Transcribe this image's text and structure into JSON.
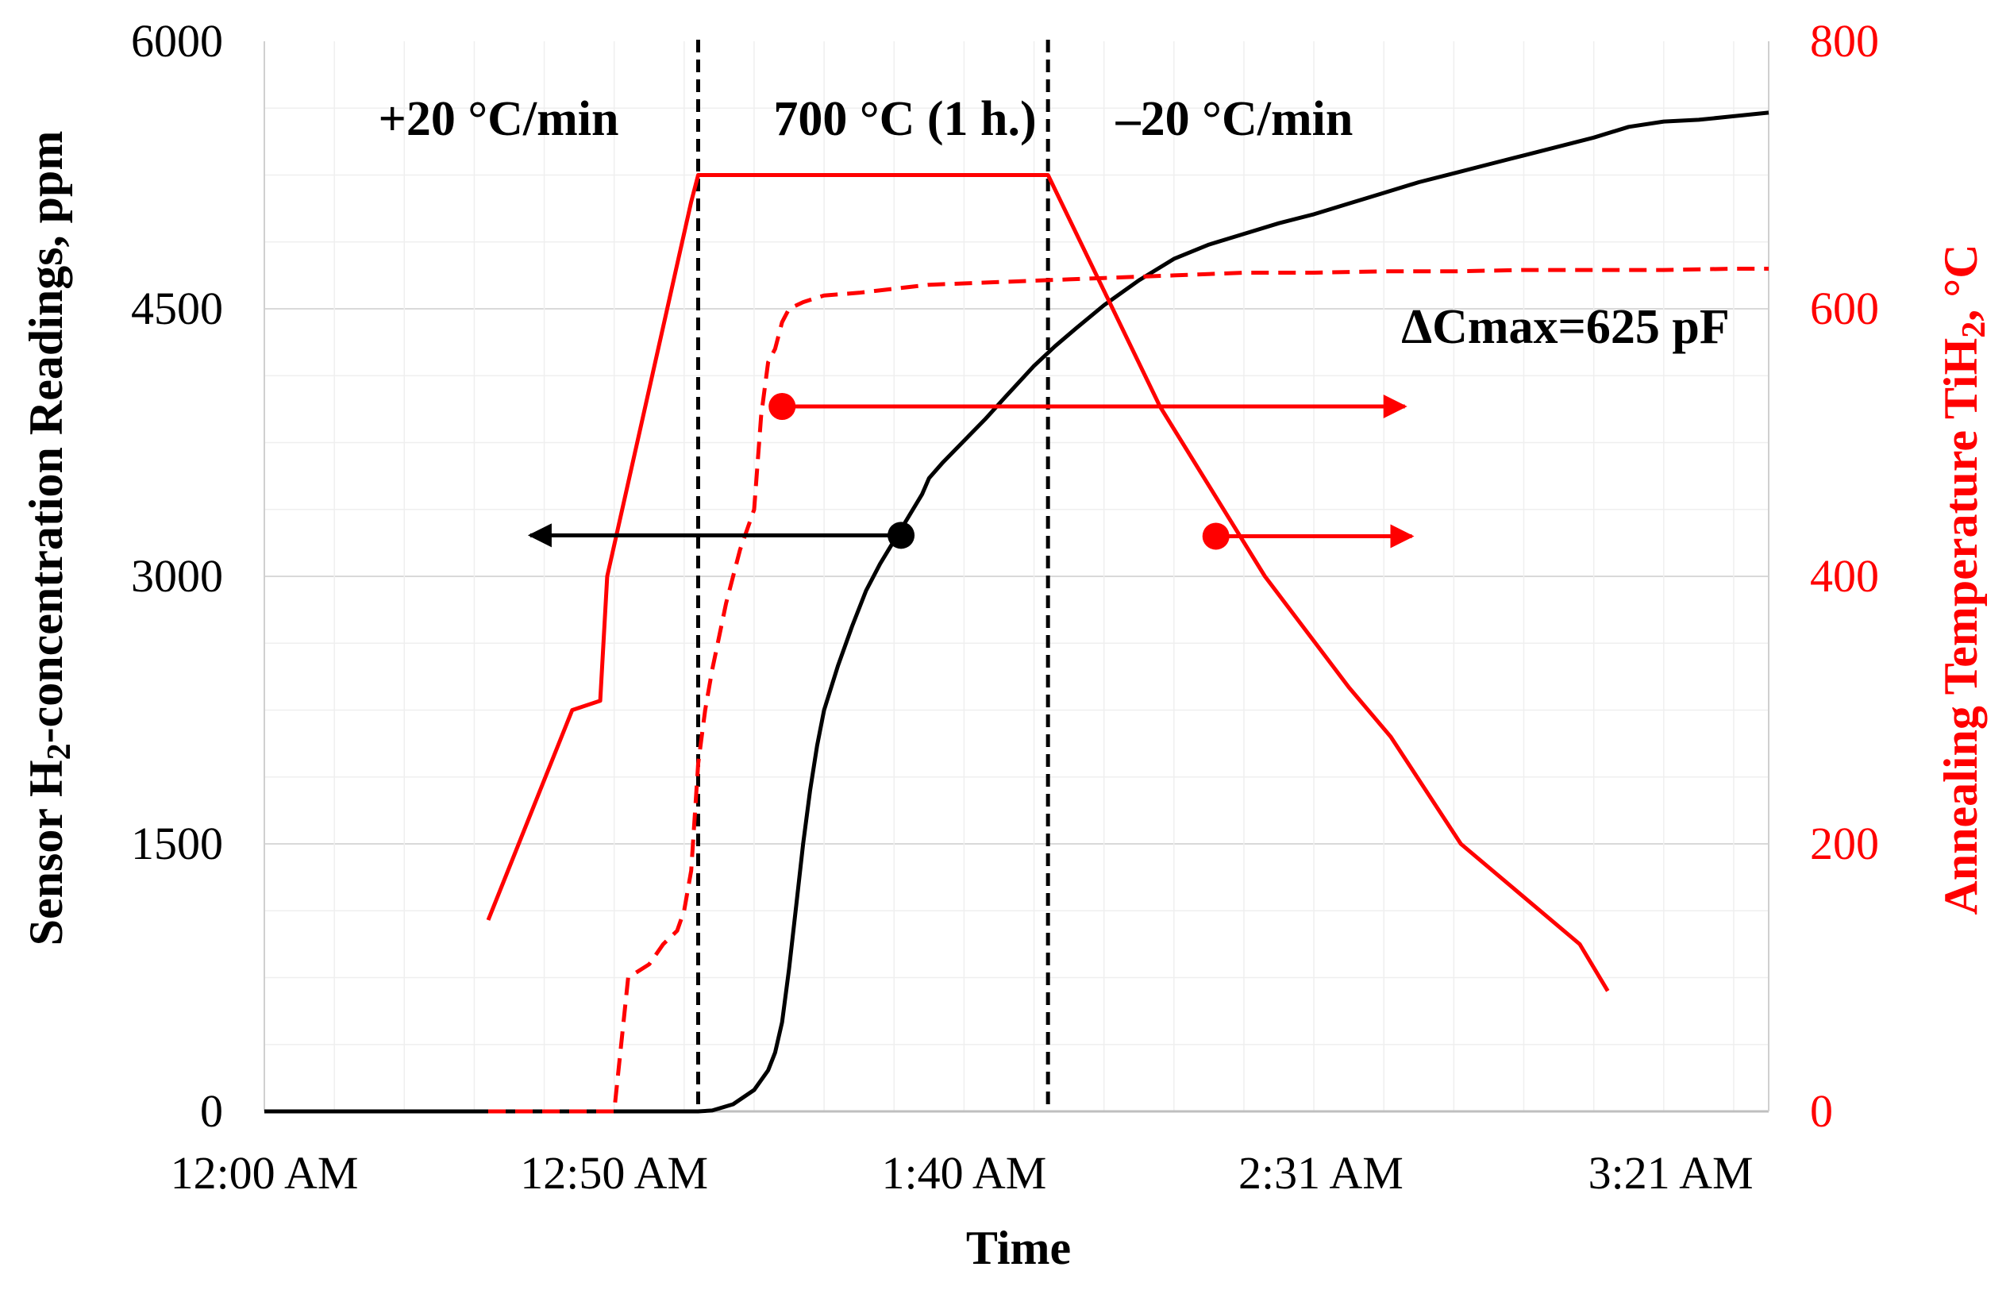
{
  "chart_data": {
    "type": "line",
    "xlabel": "Time",
    "ylabel_left_pre": "Sensor H",
    "ylabel_left_sub": "2",
    "ylabel_left_post": "-concentration Readings, ppm",
    "ylabel_right_pre": "Annealing Temperature TiH",
    "ylabel_right_sub": "2",
    "ylabel_right_post": ", °C",
    "x_ticks": [
      "12:00 AM",
      "12:50 AM",
      "1:40 AM",
      "2:31 AM",
      "3:21 AM"
    ],
    "x_tick_minutes": [
      0,
      50,
      100,
      151,
      201
    ],
    "x_range_minutes": [
      0,
      215
    ],
    "y_left_ticks": [
      0,
      1500,
      3000,
      4500,
      6000
    ],
    "y_left_range": [
      0,
      6000
    ],
    "y_right_ticks": [
      0,
      200,
      400,
      600,
      800
    ],
    "y_right_range": [
      0,
      800
    ],
    "colors": {
      "sensor": "#000000",
      "temperature": "#ff0000",
      "capacitance": "#ff0000"
    },
    "phase_lines_minutes": [
      62,
      112
    ],
    "phase_labels": [
      "+20 °C/min",
      "700 °C (1 h.)",
      "–20 °C/min"
    ],
    "annotation": "ΔCmax=625 pF",
    "series": [
      {
        "axis": "left",
        "style": "solid",
        "color": "#000000",
        "x": [
          0,
          30,
          62,
          64,
          67,
          70,
          72,
          73,
          74,
          75,
          76,
          77,
          78,
          79,
          80,
          82,
          84,
          86,
          88,
          90,
          92,
          94,
          95,
          97,
          100,
          103,
          106,
          110,
          113,
          116,
          120,
          125,
          130,
          135,
          140,
          145,
          150,
          155,
          160,
          165,
          170,
          175,
          180,
          185,
          190,
          195,
          200,
          205,
          210,
          215
        ],
        "y": [
          0,
          0,
          0,
          5,
          40,
          120,
          230,
          330,
          500,
          800,
          1150,
          1500,
          1800,
          2050,
          2250,
          2500,
          2720,
          2920,
          3070,
          3200,
          3330,
          3460,
          3550,
          3640,
          3760,
          3880,
          4010,
          4180,
          4290,
          4390,
          4520,
          4660,
          4780,
          4860,
          4920,
          4980,
          5030,
          5090,
          5150,
          5210,
          5260,
          5310,
          5360,
          5410,
          5460,
          5520,
          5550,
          5560,
          5580,
          5600
        ]
      },
      {
        "axis": "right",
        "style": "solid",
        "color": "#ff0000",
        "x": [
          32,
          44,
          48,
          49,
          61,
          62,
          112,
          128,
          143,
          155,
          161,
          171,
          188,
          192
        ],
        "y": [
          143,
          300,
          307,
          400,
          680,
          700,
          700,
          527,
          400,
          317,
          280,
          200,
          125,
          90
        ]
      },
      {
        "axis": "right",
        "style": "dashed",
        "color": "#ff0000",
        "x": [
          32,
          35,
          38,
          40,
          44,
          50,
          51,
          52,
          55,
          57,
          59,
          60,
          61,
          62,
          63,
          64,
          66,
          68,
          70,
          71,
          72,
          73,
          74,
          75,
          77,
          80,
          85,
          90,
          95,
          100,
          105,
          110,
          115,
          120,
          130,
          140,
          150,
          160,
          170,
          180,
          190,
          200,
          210,
          215
        ],
        "y": [
          0,
          0,
          0,
          0,
          0,
          0,
          50,
          100,
          110,
          125,
          135,
          150,
          180,
          260,
          300,
          330,
          380,
          420,
          450,
          520,
          560,
          570,
          590,
          600,
          605,
          610,
          612,
          615,
          618,
          619,
          620,
          621,
          622,
          623,
          625,
          627,
          627,
          628,
          628,
          629,
          629,
          629,
          630,
          630
        ]
      }
    ],
    "markers": [
      {
        "axis": "right",
        "x": 74,
        "y": 527,
        "color": "#ff0000",
        "arrow": "right",
        "arrow_to_x": 163
      },
      {
        "axis": "left",
        "x": 91,
        "y": 3230,
        "color": "#000000",
        "arrow": "left",
        "arrow_to_x": 38
      },
      {
        "axis": "right",
        "x": 136,
        "y": 430,
        "color": "#ff0000",
        "arrow": "right",
        "arrow_to_x": 164
      }
    ]
  }
}
